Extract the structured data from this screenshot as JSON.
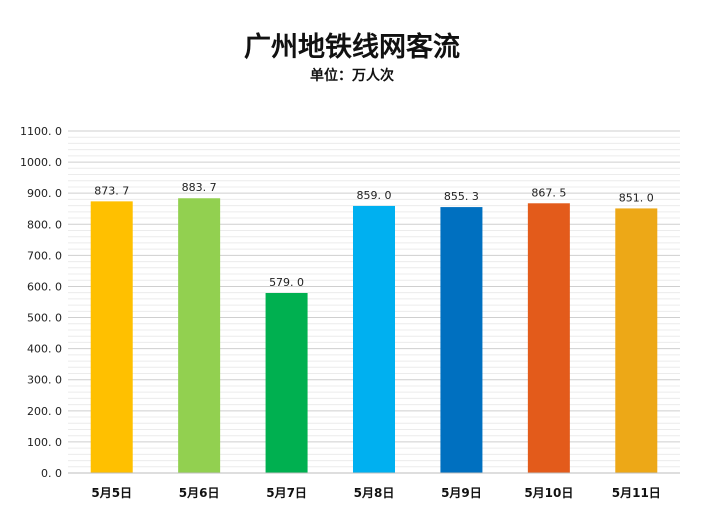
{
  "chart_data": {
    "type": "bar",
    "title": "广州地铁线网客流",
    "subtitle": "单位：万人次",
    "xlabel": "",
    "ylabel": "",
    "ylim": [
      0,
      1100
    ],
    "y_ticks": [
      "0. 0",
      "100. 0",
      "200. 0",
      "300. 0",
      "400. 0",
      "500. 0",
      "600. 0",
      "700. 0",
      "800. 0",
      "900. 0",
      "1000. 0",
      "1100. 0"
    ],
    "y_tick_values": [
      0,
      100,
      200,
      300,
      400,
      500,
      600,
      700,
      800,
      900,
      1000,
      1100
    ],
    "categories": [
      "5月5日",
      "5月6日",
      "5月7日",
      "5月8日",
      "5月9日",
      "5月10日",
      "5月11日"
    ],
    "values": [
      873.7,
      883.7,
      579.0,
      859.0,
      855.3,
      867.5,
      851.0
    ],
    "value_labels": [
      "873. 7",
      "883. 7",
      "579. 0",
      "859. 0",
      "855. 3",
      "867. 5",
      "851. 0"
    ],
    "colors": [
      "#FFC000",
      "#92D050",
      "#00B050",
      "#00B0F0",
      "#0070C0",
      "#E35B1B",
      "#EDA817"
    ],
    "grid": true,
    "legend": "none"
  }
}
